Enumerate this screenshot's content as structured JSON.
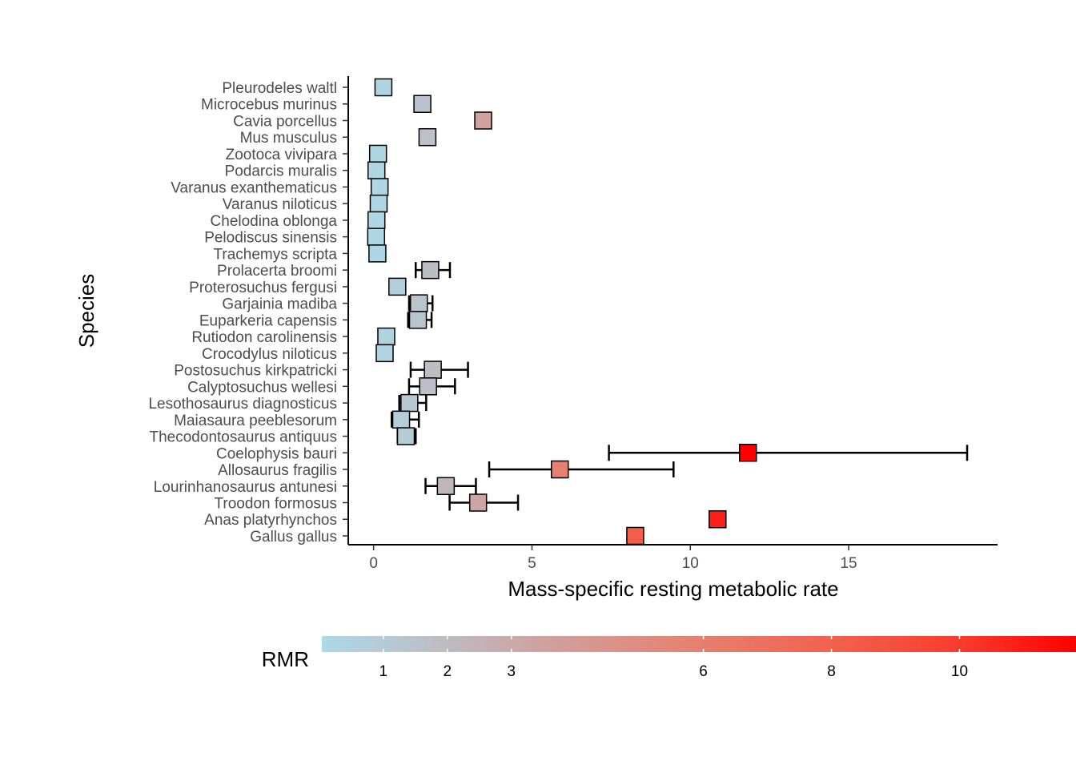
{
  "chart_data": {
    "type": "scatter",
    "xlabel": "Mass-specific resting metabolic rate",
    "ylabel": "Species",
    "xlim": [
      -0.8,
      19.7
    ],
    "x_ticks": [
      0,
      5,
      10,
      15
    ],
    "grid": false,
    "legend": {
      "title": "RMR",
      "placement": "bottom",
      "range": [
        0.04,
        11.82
      ],
      "ticks": [
        1,
        2,
        3,
        6,
        8,
        10
      ],
      "color_low": "#add8e6",
      "color_high": "#ff0000"
    },
    "points": [
      {
        "species": "Pleurodeles waltl",
        "value": 0.31
      },
      {
        "species": "Microcebus murinus",
        "value": 1.54
      },
      {
        "species": "Cavia porcellus",
        "value": 3.46
      },
      {
        "species": "Mus musculus",
        "value": 1.7
      },
      {
        "species": "Zootoca vivipara",
        "value": 0.14
      },
      {
        "species": "Podarcis muralis",
        "value": 0.09
      },
      {
        "species": "Varanus exanthematicus",
        "value": 0.19
      },
      {
        "species": "Varanus niloticus",
        "value": 0.16
      },
      {
        "species": "Chelodina oblonga",
        "value": 0.09
      },
      {
        "species": "Pelodiscus sinensis",
        "value": 0.08
      },
      {
        "species": "Trachemys scripta",
        "value": 0.12
      },
      {
        "species": "Prolacerta broomi",
        "value": 1.79,
        "lo": 1.33,
        "hi": 2.41
      },
      {
        "species": "Proterosuchus fergusi",
        "value": 0.75,
        "lo": 0.6,
        "hi": 0.93
      },
      {
        "species": "Garjainia madiba",
        "value": 1.43,
        "lo": 1.12,
        "hi": 1.86
      },
      {
        "species": "Euparkeria capensis",
        "value": 1.4,
        "lo": 1.09,
        "hi": 1.83
      },
      {
        "species": "Rutiodon carolinensis",
        "value": 0.4,
        "lo": 0.3,
        "hi": 0.53
      },
      {
        "species": "Crocodylus niloticus",
        "value": 0.35
      },
      {
        "species": "Postosuchus kirkpatricki",
        "value": 1.87,
        "lo": 1.17,
        "hi": 2.98
      },
      {
        "species": "Calyptosuchus wellesi",
        "value": 1.72,
        "lo": 1.12,
        "hi": 2.57
      },
      {
        "species": "Lesothosaurus diagnosticus",
        "value": 1.13,
        "lo": 0.81,
        "hi": 1.66
      },
      {
        "species": "Maiasaura peeblesorum",
        "value": 0.87,
        "lo": 0.57,
        "hi": 1.43
      },
      {
        "species": "Thecodontosaurus antiquus",
        "value": 1.02,
        "lo": 0.76,
        "hi": 1.33
      },
      {
        "species": "Coelophysis bauri",
        "value": 11.82,
        "lo": 7.43,
        "hi": 18.74
      },
      {
        "species": "Allosaurus fragilis",
        "value": 5.88,
        "lo": 3.65,
        "hi": 9.47
      },
      {
        "species": "Lourinhanosaurus antunesi",
        "value": 2.28,
        "lo": 1.64,
        "hi": 3.23
      },
      {
        "species": "Troodon formosus",
        "value": 3.3,
        "lo": 2.4,
        "hi": 4.56
      },
      {
        "species": "Anas platyrhynchos",
        "value": 10.86
      },
      {
        "species": "Gallus gallus",
        "value": 8.26
      }
    ]
  }
}
